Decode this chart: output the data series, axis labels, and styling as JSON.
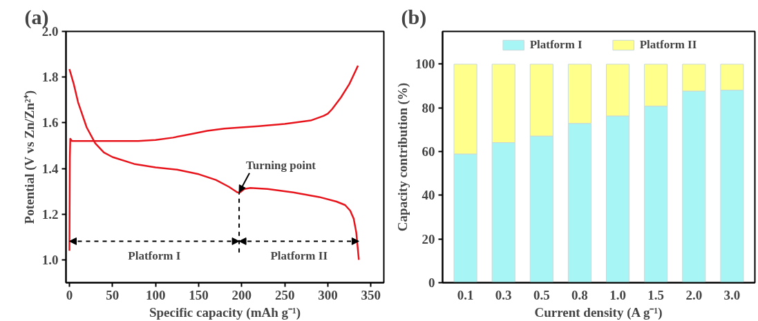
{
  "chart_data": [
    {
      "type": "line",
      "title": "(a)",
      "xlabel": "Specific capacity (mAh g⁻¹)",
      "ylabel": "Potential (V vs Zn/Zn²⁺)",
      "xlim": [
        -4,
        365
      ],
      "ylim": [
        0.9,
        2.0
      ],
      "xticks": [
        0,
        50,
        100,
        150,
        200,
        250,
        300,
        350
      ],
      "yticks": [
        {
          "value": 1,
          "label": "1.0"
        },
        1.2,
        1.4,
        1.6,
        1.8,
        {
          "value": 2,
          "label": "2.0"
        }
      ],
      "grid": false,
      "line_style": "solid",
      "series": [
        {
          "color": "#e8141c",
          "x": [
            0,
            0.5,
            1,
            3,
            20,
            50,
            80,
            100,
            120,
            140,
            160,
            180,
            200,
            220,
            250,
            280,
            295,
            300,
            305,
            315,
            325,
            335
          ],
          "values": [
            1.04,
            1.45,
            1.53,
            1.52,
            1.52,
            1.52,
            1.52,
            1.525,
            1.535,
            1.55,
            1.565,
            1.575,
            1.58,
            1.585,
            1.595,
            1.61,
            1.63,
            1.64,
            1.66,
            1.71,
            1.77,
            1.85
          ]
        },
        {
          "color": "#e8141c",
          "x": [
            0,
            5,
            10,
            20,
            30,
            40,
            50,
            75,
            100,
            125,
            150,
            170,
            185,
            195,
            198,
            203,
            210,
            230,
            260,
            290,
            310,
            320,
            326,
            330,
            333,
            335,
            336
          ],
          "values": [
            1.835,
            1.77,
            1.69,
            1.58,
            1.51,
            1.47,
            1.45,
            1.42,
            1.405,
            1.395,
            1.375,
            1.35,
            1.32,
            1.295,
            1.295,
            1.31,
            1.315,
            1.31,
            1.295,
            1.275,
            1.255,
            1.24,
            1.215,
            1.18,
            1.12,
            1.04,
            1.0
          ]
        }
      ],
      "annotations": [
        {
          "text": "Turning point",
          "x": 197,
          "y": 1.295
        },
        "Platform I",
        "Platform II"
      ],
      "ref_lines": [
        {
          "axis": "x",
          "value": 197,
          "line_style": "dashed",
          "color": "#000000"
        }
      ]
    },
    {
      "type": "bar",
      "stacked": true,
      "title": "(b)",
      "xlabel": "Current density (A g⁻¹)",
      "ylabel": "Capacity contribution (%)",
      "categories": [
        "0.1",
        "0.3",
        "0.5",
        "0.8",
        "1.0",
        "1.5",
        "2.0",
        "3.0"
      ],
      "ylim": [
        0,
        115
      ],
      "yticks": [
        0,
        20,
        40,
        60,
        80,
        100
      ],
      "grid": false,
      "legend": "top",
      "series": [
        {
          "name": "Platform I",
          "color": "#a8f5f5",
          "values": [
            58.9,
            64.1,
            67.1,
            72.9,
            76.3,
            80.8,
            87.7,
            88.1
          ]
        },
        {
          "name": "Platform II",
          "color": "#ffff8c",
          "values": [
            41.1,
            35.9,
            32.9,
            27.1,
            23.7,
            19.2,
            12.3,
            11.9
          ]
        }
      ]
    }
  ]
}
